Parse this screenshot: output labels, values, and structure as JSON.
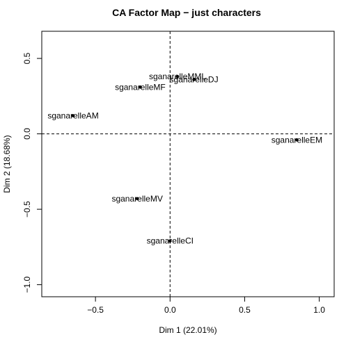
{
  "chart_data": {
    "type": "scatter",
    "title": "CA Factor Map − just characters",
    "xlabel": "Dim 1 (22.01%)",
    "ylabel": "Dim 2 (18.68%)",
    "xlim": [
      -0.86,
      1.1
    ],
    "ylim": [
      -1.08,
      0.68
    ],
    "xticks": [
      -0.5,
      0.0,
      0.5,
      1.0
    ],
    "xtick_labels": [
      "−0.5",
      "0.0",
      "0.5",
      "1.0"
    ],
    "yticks": [
      -1.0,
      -0.5,
      0.0,
      0.5
    ],
    "ytick_labels": [
      "−1.0",
      "−0.5",
      "0.0",
      "0.5"
    ],
    "reference_lines": {
      "x": 0,
      "y": 0,
      "style": "dashed"
    },
    "grid": false,
    "points": [
      {
        "label": "sganarelleMML",
        "x": 0.05,
        "y": 0.38
      },
      {
        "label": "sganarelleDJ",
        "x": 0.16,
        "y": 0.36
      },
      {
        "label": "sganarelleMF",
        "x": -0.2,
        "y": 0.31
      },
      {
        "label": "sganarelleAM",
        "x": -0.65,
        "y": 0.12
      },
      {
        "label": "sganarelleEM",
        "x": 0.85,
        "y": -0.04
      },
      {
        "label": "sganarelleMV",
        "x": -0.22,
        "y": -0.43
      },
      {
        "label": "sganarelleCI",
        "x": 0.0,
        "y": -0.71
      }
    ]
  }
}
